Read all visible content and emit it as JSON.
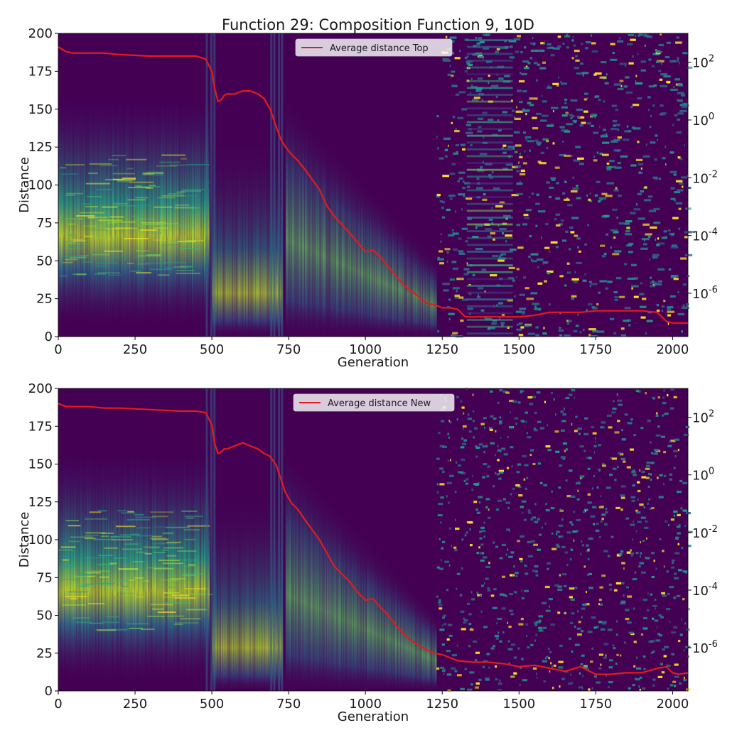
{
  "title": "Function 29: Composition Function 9, 10D",
  "colors": {
    "line": "#e41a1c",
    "viridis_dark": "#440154",
    "viridis_bright": "#fde725"
  },
  "chart_data": [
    {
      "type": "heatmap",
      "xlabel": "Generation",
      "ylabel": "Distance",
      "xlim": [
        0,
        2050
      ],
      "ylim": [
        0,
        200
      ],
      "x_ticks": [
        "0",
        "250",
        "500",
        "750",
        "1000",
        "1250",
        "1500",
        "1750",
        "2000"
      ],
      "y_ticks": [
        "0",
        "25",
        "50",
        "75",
        "100",
        "125",
        "150",
        "175",
        "200"
      ],
      "color_scale": "log",
      "color_ticks": [
        "10^2",
        "10^0",
        "10^-2",
        "10^-4",
        "10^-6"
      ],
      "grid": false,
      "legend_position": "top-center",
      "series": [
        {
          "name": "Average distance Top",
          "type": "line",
          "x": [
            0,
            25,
            50,
            100,
            150,
            200,
            300,
            400,
            450,
            480,
            500,
            510,
            520,
            530,
            540,
            550,
            575,
            600,
            625,
            650,
            670,
            690,
            710,
            725,
            740,
            760,
            780,
            800,
            850,
            875,
            900,
            950,
            975,
            1000,
            1025,
            1050,
            1075,
            1100,
            1125,
            1150,
            1175,
            1200,
            1225,
            1250,
            1275,
            1300,
            1325,
            1350,
            1400,
            1450,
            1500,
            1550,
            1600,
            1650,
            1700,
            1750,
            1800,
            1850,
            1900,
            1950,
            1980,
            2000,
            2050
          ],
          "values": [
            191,
            188,
            187,
            187,
            187,
            186,
            185,
            185,
            185,
            183,
            175,
            163,
            155,
            156,
            159,
            160,
            160,
            162,
            162,
            160,
            157,
            150,
            138,
            130,
            125,
            120,
            116,
            111,
            97,
            86,
            79,
            68,
            62,
            56,
            57,
            52,
            46,
            40,
            34,
            30,
            26,
            22,
            21,
            19,
            19,
            18,
            13,
            13,
            13,
            13,
            13,
            14,
            16,
            16,
            16,
            17,
            17,
            17,
            17,
            16,
            10,
            9,
            9
          ]
        }
      ]
    },
    {
      "type": "heatmap",
      "xlabel": "Generation",
      "ylabel": "Distance",
      "xlim": [
        0,
        2050
      ],
      "ylim": [
        0,
        200
      ],
      "x_ticks": [
        "0",
        "250",
        "500",
        "750",
        "1000",
        "1250",
        "1500",
        "1750",
        "2000"
      ],
      "y_ticks": [
        "0",
        "25",
        "50",
        "75",
        "100",
        "125",
        "150",
        "175",
        "200"
      ],
      "color_scale": "log",
      "color_ticks": [
        "10^2",
        "10^0",
        "10^-2",
        "10^-4",
        "10^-6"
      ],
      "grid": false,
      "legend_position": "top-center",
      "series": [
        {
          "name": "Average distance New",
          "type": "line",
          "x": [
            0,
            25,
            50,
            100,
            150,
            200,
            300,
            400,
            450,
            480,
            500,
            510,
            520,
            530,
            540,
            550,
            575,
            600,
            625,
            650,
            670,
            690,
            710,
            725,
            740,
            760,
            780,
            800,
            850,
            875,
            900,
            950,
            975,
            1000,
            1025,
            1050,
            1075,
            1100,
            1125,
            1150,
            1175,
            1200,
            1225,
            1250,
            1275,
            1300,
            1350,
            1400,
            1450,
            1500,
            1550,
            1600,
            1650,
            1700,
            1750,
            1800,
            1850,
            1900,
            1950,
            1980,
            2000,
            2020,
            2050
          ],
          "values": [
            190,
            188,
            188,
            188,
            187,
            187,
            186,
            185,
            185,
            184,
            176,
            163,
            157,
            158,
            160,
            160,
            162,
            164,
            162,
            160,
            157,
            155,
            149,
            140,
            131,
            124,
            120,
            114,
            100,
            91,
            82,
            72,
            65,
            60,
            61,
            55,
            50,
            43,
            38,
            33,
            30,
            27,
            25,
            24,
            22,
            20,
            19,
            19,
            18,
            16,
            17,
            15,
            13,
            16,
            11,
            11,
            12,
            12,
            15,
            16,
            12,
            11,
            12
          ]
        }
      ]
    }
  ]
}
